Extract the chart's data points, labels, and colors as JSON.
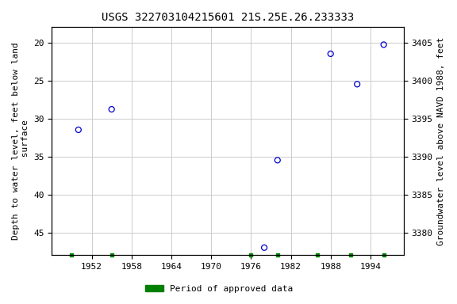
{
  "title": "USGS 322703104215601 21S.25E.26.233333",
  "ylabel_left": "Depth to water level, feet below land\n surface",
  "ylabel_right": "Groundwater level above NAVD 1988, feet",
  "years": [
    1950,
    1955,
    1978,
    1980,
    1988,
    1992,
    1996
  ],
  "depth_below_surface": [
    31.5,
    28.8,
    47.0,
    35.5,
    21.5,
    25.5,
    20.3
  ],
  "land_surface_elevation": 3425.0,
  "ylim_left_top": 18,
  "ylim_left_bottom": 48,
  "ylim_right_top": 3407,
  "ylim_right_bottom": 3377,
  "yticks_left": [
    20,
    25,
    30,
    35,
    40,
    45
  ],
  "yticks_right": [
    3380,
    3385,
    3390,
    3395,
    3400,
    3405
  ],
  "xticks": [
    1952,
    1958,
    1964,
    1970,
    1976,
    1982,
    1988,
    1994
  ],
  "xlim_left": 1946,
  "xlim_right": 1999,
  "marker_color": "#0000cc",
  "marker_size": 5,
  "grid_color": "#cccccc",
  "bg_color": "#ffffff",
  "title_fontsize": 10,
  "axis_label_fontsize": 8,
  "tick_fontsize": 8,
  "legend_label": "Period of approved data",
  "legend_color": "#008000",
  "green_dot_years": [
    1949,
    1955,
    1976,
    1980,
    1986,
    1991,
    1996
  ],
  "green_dot_size": 25
}
